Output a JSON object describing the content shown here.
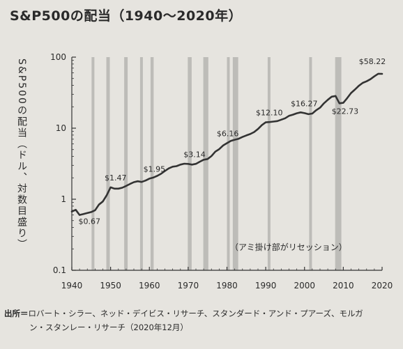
{
  "chart_data": {
    "type": "line",
    "title": "S&P500の配当（1940〜2020年）",
    "ylabel": "S&P500の配当（ドル、対数目盛り）",
    "xlabel": "",
    "y_scale": "log",
    "ylim": [
      0.1,
      100
    ],
    "xlim": [
      1940,
      2020
    ],
    "x_ticks": [
      "1940",
      "1950",
      "1960",
      "1970",
      "1980",
      "1990",
      "2000",
      "2010",
      "2020"
    ],
    "y_ticks": [
      "0.1",
      "1",
      "10",
      "100"
    ],
    "annotation": "（アミ掛け部がリセッション）",
    "recession_shading": true,
    "series_color": "#333333",
    "shade_color": "#bdbcb8",
    "recessions": [
      {
        "start": 1945.1,
        "end": 1945.8
      },
      {
        "start": 1948.9,
        "end": 1949.8
      },
      {
        "start": 1953.5,
        "end": 1954.4
      },
      {
        "start": 1957.6,
        "end": 1958.3
      },
      {
        "start": 1960.3,
        "end": 1961.1
      },
      {
        "start": 1969.9,
        "end": 1970.9
      },
      {
        "start": 1973.9,
        "end": 1975.2
      },
      {
        "start": 1980.0,
        "end": 1980.6
      },
      {
        "start": 1981.5,
        "end": 1982.9
      },
      {
        "start": 1990.5,
        "end": 1991.2
      },
      {
        "start": 2001.2,
        "end": 2001.9
      },
      {
        "start": 2007.9,
        "end": 2009.5
      }
    ],
    "data_labels": [
      {
        "text": "$0.67",
        "x": 1944,
        "y": 0.67
      },
      {
        "text": "$1.47",
        "x": 1952,
        "y": 1.47
      },
      {
        "text": "$1.95",
        "x": 1962,
        "y": 1.95
      },
      {
        "text": "$3.14",
        "x": 1972,
        "y": 3.14
      },
      {
        "text": "$6.16",
        "x": 1982,
        "y": 6.16
      },
      {
        "text": "$12.10",
        "x": 1992,
        "y": 12.1
      },
      {
        "text": "$16.27",
        "x": 2001,
        "y": 16.27
      },
      {
        "text": "$22.73",
        "x": 2011,
        "y": 22.73
      },
      {
        "text": "$58.22",
        "x": 2020,
        "y": 58.22
      }
    ],
    "series": [
      {
        "x": [
          1940,
          1941,
          1942,
          1943,
          1944,
          1945,
          1946,
          1947,
          1948,
          1949,
          1950,
          1951,
          1952,
          1953,
          1954,
          1955,
          1956,
          1957,
          1958,
          1959,
          1960,
          1961,
          1962,
          1963,
          1964,
          1965,
          1966,
          1967,
          1968,
          1969,
          1970,
          1971,
          1972,
          1973,
          1974,
          1975,
          1976,
          1977,
          1978,
          1979,
          1980,
          1981,
          1982,
          1983,
          1984,
          1985,
          1986,
          1987,
          1988,
          1989,
          1990,
          1991,
          1992,
          1993,
          1994,
          1995,
          1996,
          1997,
          1998,
          1999,
          2000,
          2001,
          2002,
          2003,
          2004,
          2005,
          2006,
          2007,
          2008,
          2009,
          2010,
          2011,
          2012,
          2013,
          2014,
          2015,
          2016,
          2017,
          2018,
          2019,
          2020
        ],
        "y": [
          0.67,
          0.71,
          0.6,
          0.62,
          0.64,
          0.66,
          0.7,
          0.84,
          0.93,
          1.14,
          1.47,
          1.41,
          1.41,
          1.45,
          1.54,
          1.64,
          1.74,
          1.79,
          1.75,
          1.83,
          1.95,
          2.02,
          2.13,
          2.28,
          2.5,
          2.72,
          2.87,
          2.92,
          3.07,
          3.16,
          3.14,
          3.07,
          3.15,
          3.38,
          3.6,
          3.68,
          4.05,
          4.67,
          5.07,
          5.7,
          6.16,
          6.63,
          6.87,
          7.09,
          7.53,
          7.9,
          8.28,
          8.81,
          9.73,
          11.05,
          12.1,
          12.2,
          12.38,
          12.58,
          13.18,
          13.79,
          14.9,
          15.5,
          16.2,
          16.7,
          16.27,
          15.74,
          16.08,
          17.88,
          19.4,
          22.38,
          25.05,
          27.73,
          28.39,
          22.41,
          22.73,
          26.43,
          31.25,
          34.99,
          39.44,
          43.39,
          45.7,
          48.93,
          53.61,
          58.24,
          58.22
        ]
      }
    ]
  },
  "source": {
    "label": "出所＝",
    "line1": "ロバート・シラー、ネッド・デイビス・リサーチ、スタンダード・アンド・プアーズ、モルガ",
    "line2": "ン・スタンレー・リサーチ（2020年12月）"
  }
}
